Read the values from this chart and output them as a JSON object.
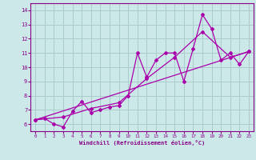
{
  "xlabel": "Windchill (Refroidissement éolien,°C)",
  "xlim": [
    -0.5,
    23.5
  ],
  "ylim": [
    5.5,
    14.5
  ],
  "xticks": [
    0,
    1,
    2,
    3,
    4,
    5,
    6,
    7,
    8,
    9,
    10,
    11,
    12,
    13,
    14,
    15,
    16,
    17,
    18,
    19,
    20,
    21,
    22,
    23
  ],
  "yticks": [
    6,
    7,
    8,
    9,
    10,
    11,
    12,
    13,
    14
  ],
  "bg_color": "#cce8e8",
  "grid_color": "#aacccc",
  "line_color": "#aa00aa",
  "line1_x": [
    0,
    1,
    2,
    3,
    4,
    5,
    6,
    7,
    8,
    9,
    10,
    11,
    12,
    13,
    14,
    15,
    16,
    17,
    18,
    19,
    20,
    21,
    22,
    23
  ],
  "line1_y": [
    6.3,
    6.4,
    6.0,
    5.8,
    6.9,
    7.6,
    6.8,
    7.0,
    7.2,
    7.3,
    8.0,
    11.0,
    9.3,
    10.5,
    11.0,
    11.0,
    9.0,
    11.3,
    13.7,
    12.7,
    10.5,
    11.0,
    10.2,
    11.1
  ],
  "line2_x": [
    0,
    3,
    6,
    9,
    12,
    15,
    18,
    21,
    23
  ],
  "line2_y": [
    6.3,
    6.5,
    7.1,
    7.5,
    9.2,
    10.7,
    12.5,
    10.7,
    11.1
  ],
  "line3_x": [
    0,
    23
  ],
  "line3_y": [
    6.3,
    11.1
  ]
}
